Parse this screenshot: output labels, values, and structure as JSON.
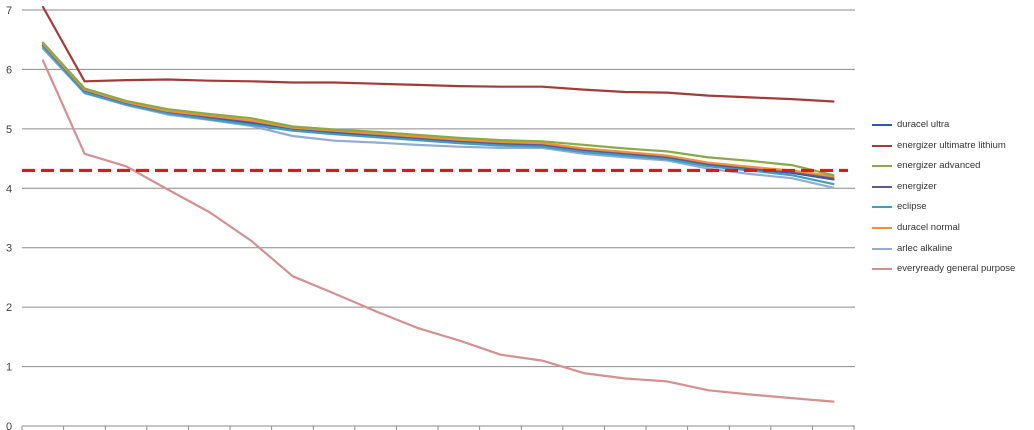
{
  "chart_data": {
    "type": "line",
    "title": "",
    "xlabel": "",
    "ylabel": "",
    "ylim": [
      0,
      7
    ],
    "yticks": [
      "0",
      "1",
      "2",
      "3",
      "4",
      "5",
      "6",
      "7"
    ],
    "x_count": 20,
    "grid": "horizontal",
    "legend_position": "right",
    "reference_line": {
      "value": 4.3,
      "color": "#dd1a1a",
      "style": "dashed"
    },
    "series": [
      {
        "name": "duracel ultra",
        "color": "#2f5b9b",
        "values": [
          6.4,
          5.63,
          5.43,
          5.27,
          5.18,
          5.09,
          4.99,
          4.93,
          4.88,
          4.83,
          4.78,
          4.74,
          4.72,
          4.63,
          4.57,
          4.5,
          4.39,
          4.32,
          4.26,
          4.15
        ]
      },
      {
        "name": "energizer ultimatre lithium",
        "color": "#a53b39",
        "values": [
          7.05,
          5.8,
          5.82,
          5.83,
          5.81,
          5.8,
          5.78,
          5.78,
          5.76,
          5.74,
          5.72,
          5.71,
          5.71,
          5.66,
          5.62,
          5.61,
          5.56,
          5.53,
          5.5,
          5.46
        ]
      },
      {
        "name": "energizer advanced",
        "color": "#8aaa47",
        "values": [
          6.45,
          5.68,
          5.47,
          5.33,
          5.25,
          5.18,
          5.04,
          4.99,
          4.95,
          4.9,
          4.85,
          4.81,
          4.79,
          4.73,
          4.67,
          4.62,
          4.52,
          4.46,
          4.39,
          4.22
        ]
      },
      {
        "name": "energizer",
        "color": "#6a529b",
        "values": [
          6.42,
          5.65,
          5.44,
          5.29,
          5.2,
          5.12,
          5.01,
          4.95,
          4.9,
          4.85,
          4.8,
          4.76,
          4.74,
          4.65,
          4.59,
          4.53,
          4.41,
          4.34,
          4.28,
          4.17
        ]
      },
      {
        "name": "eclipse",
        "color": "#3c9ec0",
        "values": [
          6.38,
          5.61,
          5.41,
          5.26,
          5.16,
          5.07,
          4.97,
          4.91,
          4.86,
          4.81,
          4.76,
          4.72,
          4.7,
          4.61,
          4.55,
          4.49,
          4.37,
          4.3,
          4.22,
          4.07
        ]
      },
      {
        "name": "duracel normal",
        "color": "#ee9234",
        "values": [
          6.43,
          5.66,
          5.45,
          5.3,
          5.22,
          5.14,
          5.02,
          4.97,
          4.92,
          4.87,
          4.82,
          4.78,
          4.76,
          4.67,
          4.61,
          4.55,
          4.43,
          4.36,
          4.3,
          4.2
        ]
      },
      {
        "name": "arlec alkaline",
        "color": "#93acd4",
        "values": [
          6.35,
          5.6,
          5.4,
          5.24,
          5.15,
          5.05,
          4.88,
          4.8,
          4.77,
          4.73,
          4.7,
          4.68,
          4.68,
          4.58,
          4.52,
          4.47,
          4.33,
          4.24,
          4.17,
          4.01
        ]
      },
      {
        "name": "everyready general purpose",
        "color": "#d4918f",
        "values": [
          6.15,
          4.58,
          4.37,
          3.98,
          3.6,
          3.12,
          2.52,
          2.23,
          1.93,
          1.65,
          1.44,
          1.2,
          1.1,
          0.89,
          0.8,
          0.75,
          0.6,
          0.53,
          0.47,
          0.41
        ]
      }
    ]
  }
}
